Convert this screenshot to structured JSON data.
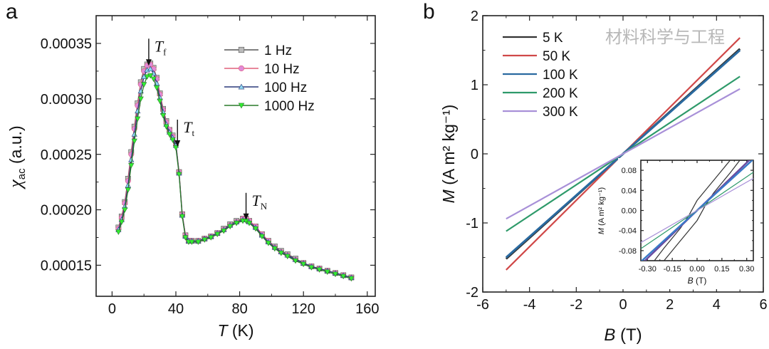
{
  "panels": {
    "a": "a",
    "b": "b"
  },
  "watermark": "材料科学与工程",
  "chart_data": [
    {
      "type": "line",
      "panel": "a",
      "xlabel_var": "T",
      "xlabel_unit": "(K)",
      "ylabel_var": "χ",
      "ylabel_sub": "ac",
      "ylabel_unit": "(a.u.)",
      "xlim": [
        -10,
        165
      ],
      "ylim": [
        0.000122,
        0.000375
      ],
      "xticks": [
        0,
        40,
        80,
        120,
        160
      ],
      "xtick_labels": [
        "0",
        "40",
        "80",
        "120",
        "160"
      ],
      "yticks": [
        0.00015,
        0.0002,
        0.00025,
        0.0003,
        0.00035
      ],
      "ytick_labels": [
        "0.00015",
        "0.00020",
        "0.00025",
        "0.00030",
        "0.00035"
      ],
      "legend_position": "top-right",
      "annotations": [
        {
          "label": "T",
          "sub": "f",
          "x": 23,
          "y": 0.000335
        },
        {
          "label": "T",
          "sub": "t",
          "x": 41,
          "y": 0.000262
        },
        {
          "label": "T",
          "sub": "N",
          "x": 84,
          "y": 0.000196
        }
      ],
      "x": [
        4,
        6,
        8,
        10,
        12,
        14,
        16,
        18,
        20,
        22,
        24,
        26,
        28,
        30,
        32,
        34,
        36,
        38,
        40,
        42,
        44,
        46,
        48,
        50,
        54,
        58,
        62,
        66,
        70,
        74,
        78,
        82,
        84,
        86,
        90,
        94,
        98,
        102,
        106,
        110,
        115,
        120,
        125,
        130,
        135,
        140,
        145,
        150
      ],
      "series": [
        {
          "name": "1 Hz",
          "color": "#555555",
          "marker": "square",
          "marker_color": "#bbbbbb",
          "values": [
            0.000184,
            0.000194,
            0.000207,
            0.000228,
            0.000252,
            0.000275,
            0.000296,
            0.000315,
            0.000327,
            0.000331,
            0.000332,
            0.000328,
            0.000319,
            0.000305,
            0.000291,
            0.00028,
            0.000272,
            0.000267,
            0.00026,
            0.000234,
            0.000196,
            0.000177,
            0.000172,
            0.000172,
            0.000172,
            0.000174,
            0.000176,
            0.000179,
            0.000183,
            0.000187,
            0.00019,
            0.000192,
            0.000192,
            0.00019,
            0.000185,
            0.000178,
            0.000172,
            0.000167,
            0.000163,
            0.00016,
            0.000156,
            0.000152,
            0.000149,
            0.000147,
            0.000145,
            0.000143,
            0.000141,
            0.000139
          ]
        },
        {
          "name": "10 Hz",
          "color": "#e0607a",
          "marker": "circle",
          "marker_color": "#e08ad8",
          "values": [
            0.000183,
            0.000193,
            0.000206,
            0.000226,
            0.00025,
            0.000273,
            0.000294,
            0.000313,
            0.000325,
            0.00033,
            0.000331,
            0.000327,
            0.000318,
            0.000304,
            0.00029,
            0.000279,
            0.000272,
            0.000266,
            0.000259,
            0.000234,
            0.000196,
            0.000177,
            0.000172,
            0.000172,
            0.000172,
            0.000174,
            0.000176,
            0.000179,
            0.000182,
            0.000186,
            0.000189,
            0.000192,
            0.000192,
            0.00019,
            0.000185,
            0.000178,
            0.000172,
            0.000166,
            0.000162,
            0.000159,
            0.000155,
            0.000152,
            0.000149,
            0.000147,
            0.000145,
            0.000143,
            0.000141,
            0.000139
          ]
        },
        {
          "name": "100 Hz",
          "color": "#2a3a7a",
          "marker": "triangle-up",
          "marker_color": "#8fd8f0",
          "values": [
            0.000182,
            0.000191,
            0.000203,
            0.000222,
            0.000245,
            0.000268,
            0.000289,
            0.000307,
            0.00032,
            0.000326,
            0.000327,
            0.000323,
            0.000314,
            0.000301,
            0.000288,
            0.000277,
            0.00027,
            0.000265,
            0.000258,
            0.000233,
            0.000195,
            0.000176,
            0.000172,
            0.000172,
            0.000172,
            0.000174,
            0.000176,
            0.000179,
            0.000182,
            0.000186,
            0.000189,
            0.000191,
            0.000191,
            0.000189,
            0.000184,
            0.000177,
            0.000171,
            0.000166,
            0.000162,
            0.000159,
            0.000155,
            0.000152,
            0.000149,
            0.000147,
            0.000145,
            0.000143,
            0.000141,
            0.000139
          ]
        },
        {
          "name": "1000 Hz",
          "color": "#2a7a2a",
          "marker": "triangle-down",
          "marker_color": "#33ee33",
          "values": [
            0.00018,
            0.000189,
            0.0002,
            0.000218,
            0.00024,
            0.000262,
            0.000282,
            0.0003,
            0.000313,
            0.00032,
            0.000321,
            0.000318,
            0.00031,
            0.000298,
            0.000285,
            0.000275,
            0.000268,
            0.000263,
            0.000256,
            0.000232,
            0.000194,
            0.000175,
            0.000171,
            0.000171,
            0.000171,
            0.000173,
            0.000175,
            0.000178,
            0.000181,
            0.000185,
            0.000188,
            0.00019,
            0.00019,
            0.000188,
            0.000183,
            0.000176,
            0.00017,
            0.000165,
            0.000161,
            0.000158,
            0.000154,
            0.000151,
            0.000148,
            0.000146,
            0.000144,
            0.000142,
            0.00014,
            0.000138
          ]
        }
      ]
    },
    {
      "type": "line",
      "panel": "b",
      "xlabel_var": "B",
      "xlabel_unit": "(T)",
      "ylabel_var": "M",
      "ylabel_unit": "(A m² kg⁻¹)",
      "xlim": [
        -6,
        6
      ],
      "ylim": [
        -2,
        2
      ],
      "xticks": [
        -6,
        -4,
        -2,
        0,
        2,
        4,
        6
      ],
      "xtick_labels": [
        "-6",
        "-4",
        "-2",
        "0",
        "2",
        "4",
        "6"
      ],
      "yticks": [
        -2,
        -1,
        0,
        1,
        2
      ],
      "ytick_labels": [
        "-2",
        "-1",
        "0",
        "1",
        "2"
      ],
      "legend_position": "top-left",
      "series": [
        {
          "name": "5 K",
          "color": "#333333",
          "x": [
            -5,
            5
          ],
          "y": [
            -1.52,
            1.52
          ]
        },
        {
          "name": "50 K",
          "color": "#d04848",
          "x": [
            -5,
            5
          ],
          "y": [
            -1.68,
            1.68
          ]
        },
        {
          "name": "100 K",
          "color": "#2a6aa0",
          "x": [
            -5,
            5
          ],
          "y": [
            -1.5,
            1.5
          ]
        },
        {
          "name": "200 K",
          "color": "#2e9a6a",
          "x": [
            -5,
            5
          ],
          "y": [
            -1.12,
            1.12
          ]
        },
        {
          "name": "300 K",
          "color": "#a890d8",
          "x": [
            -5,
            5
          ],
          "y": [
            -0.94,
            0.94
          ]
        }
      ],
      "inset": {
        "xlabel_var": "B",
        "xlabel_unit": "(T)",
        "ylabel_var": "M",
        "ylabel_unit": "(A m² kg⁻¹)",
        "xlim": [
          -0.34,
          0.34
        ],
        "ylim": [
          -0.1,
          0.1
        ],
        "xticks": [
          -0.3,
          -0.15,
          0,
          0.15,
          0.3
        ],
        "xtick_labels": [
          "-0.30",
          "-0.15",
          "0.00",
          "0.15",
          "0.30"
        ],
        "yticks": [
          -0.08,
          -0.04,
          0,
          0.04,
          0.08
        ],
        "ytick_labels": [
          "-0.08",
          "-0.04",
          "0.00",
          "0.04",
          "0.08"
        ],
        "series": [
          {
            "name": "5 K",
            "color": "#333333",
            "x": [
              -0.34,
              -0.2,
              -0.1,
              -0.05,
              0,
              0.05,
              0.1,
              0.2,
              0.34
            ],
            "y": [
              -0.135,
              -0.075,
              -0.035,
              -0.01,
              0.02,
              0.04,
              0.06,
              0.1,
              0.145
            ]
          },
          {
            "name": "5 K",
            "color": "#333333",
            "x": [
              -0.34,
              -0.2,
              -0.1,
              -0.05,
              0,
              0.05,
              0.1,
              0.2,
              0.34
            ],
            "y": [
              -0.145,
              -0.1,
              -0.06,
              -0.04,
              -0.02,
              0.01,
              0.035,
              0.075,
              0.135
            ]
          },
          {
            "name": "50 K",
            "color": "#6a4aa0",
            "x": [
              -0.34,
              0.34
            ],
            "y": [
              -0.108,
              0.108
            ]
          },
          {
            "name": "100 K",
            "color": "#3a7ac8",
            "x": [
              -0.34,
              0.34
            ],
            "y": [
              -0.102,
              0.102
            ]
          },
          {
            "name": "200 K",
            "color": "#2e9a6a",
            "x": [
              -0.34,
              0.34
            ],
            "y": [
              -0.076,
              0.076
            ]
          },
          {
            "name": "300 K",
            "color": "#a890d8",
            "x": [
              -0.34,
              0.34
            ],
            "y": [
              -0.064,
              0.064
            ]
          }
        ]
      }
    }
  ]
}
